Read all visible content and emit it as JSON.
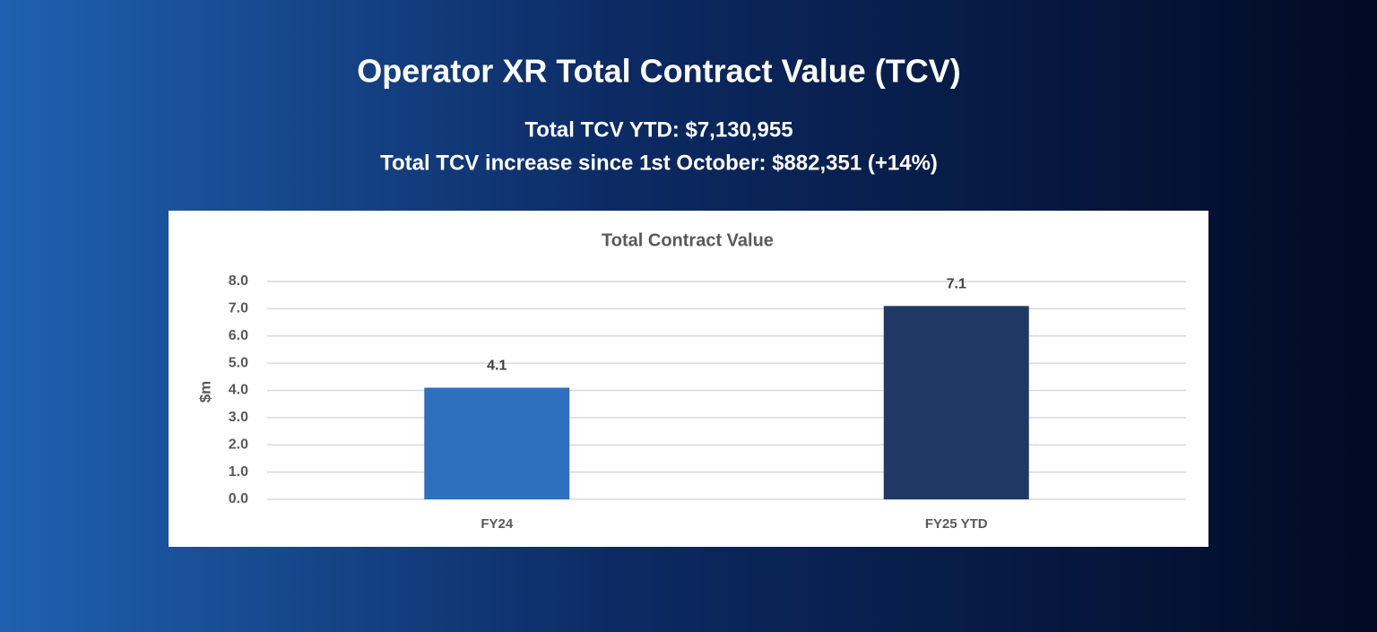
{
  "header": {
    "title": "Operator XR Total Contract Value (TCV)",
    "subtitle_lines": [
      "Total TCV YTD: $7,130,955",
      "Total TCV increase since 1st October: $882,351 (+14%)"
    ]
  },
  "chart_data": {
    "type": "bar",
    "title": "Total Contract Value",
    "y_label": "$m",
    "categories": [
      "FY24",
      "FY25 YTD"
    ],
    "values": [
      4.1,
      7.1
    ],
    "colors": [
      "#2e6fc0",
      "#203864"
    ],
    "ylim": [
      0,
      8
    ],
    "yticks": [
      {
        "value": 0,
        "label": "0.0"
      },
      {
        "value": 1,
        "label": "1.0"
      },
      {
        "value": 2,
        "label": "2.0"
      },
      {
        "value": 3,
        "label": "3.0"
      },
      {
        "value": 4,
        "label": "4.0"
      },
      {
        "value": 5,
        "label": "5.0"
      },
      {
        "value": 6,
        "label": "6.0"
      },
      {
        "value": 7,
        "label": "7.0"
      },
      {
        "value": 8,
        "label": "8.0"
      }
    ],
    "grid": true
  }
}
